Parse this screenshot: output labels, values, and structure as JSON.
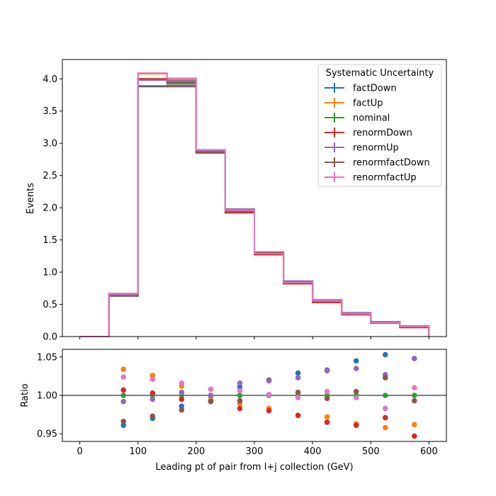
{
  "chart_data": [
    {
      "type": "step",
      "ylabel": "Events",
      "xlim": [
        -30,
        630
      ],
      "ylim": [
        0,
        4.3
      ],
      "yticks": [
        "0.0",
        "0.5",
        "1.0",
        "1.5",
        "2.0",
        "2.5",
        "3.0",
        "3.5",
        "4.0"
      ],
      "bin_edges": [
        0,
        50,
        100,
        150,
        200,
        250,
        300,
        350,
        400,
        450,
        500,
        550,
        600
      ],
      "legend": {
        "title": "Systematic Uncertainty",
        "placement": "upper-right"
      },
      "series": [
        {
          "name": "factDown",
          "color": "#1f77b4",
          "values": [
            0,
            0.63,
            3.88,
            3.9,
            2.86,
            1.96,
            1.31,
            0.86,
            0.56,
            0.37,
            0.23,
            0.16
          ]
        },
        {
          "name": "factUp",
          "color": "#ff7f0e",
          "values": [
            0,
            0.67,
            4.08,
            3.99,
            2.88,
            1.93,
            1.27,
            0.82,
            0.53,
            0.34,
            0.21,
            0.15
          ]
        },
        {
          "name": "nominal",
          "color": "#2ca02c",
          "values": [
            0,
            0.65,
            3.99,
            3.95,
            2.88,
            1.95,
            1.29,
            0.84,
            0.55,
            0.35,
            0.22,
            0.155
          ]
        },
        {
          "name": "renormDown",
          "color": "#d62728",
          "values": [
            0,
            0.655,
            4.0,
            3.93,
            2.85,
            1.92,
            1.27,
            0.82,
            0.53,
            0.34,
            0.21,
            0.14
          ]
        },
        {
          "name": "renormUp",
          "color": "#9467bd",
          "values": [
            0,
            0.645,
            3.98,
            3.97,
            2.88,
            1.98,
            1.31,
            0.86,
            0.57,
            0.37,
            0.225,
            0.165
          ]
        },
        {
          "name": "renormfactDown",
          "color": "#8c564b",
          "values": [
            0,
            0.63,
            3.89,
            3.88,
            2.86,
            1.94,
            1.3,
            0.845,
            0.55,
            0.355,
            0.225,
            0.155
          ]
        },
        {
          "name": "renormfactUp",
          "color": "#e377c2",
          "values": [
            0,
            0.665,
            4.09,
            4.01,
            2.9,
            1.96,
            1.29,
            0.84,
            0.555,
            0.355,
            0.218,
            0.158
          ]
        }
      ]
    },
    {
      "type": "scatter",
      "xlabel": "Leading pt of pair from l+j collection (GeV)",
      "ylabel": "Ratio",
      "xlim": [
        -30,
        630
      ],
      "ylim": [
        0.94,
        1.06
      ],
      "xticks": [
        "0",
        "100",
        "200",
        "300",
        "400",
        "500",
        "600"
      ],
      "yticks": [
        "0.95",
        "1.00",
        "1.05"
      ],
      "reference_line": 1.0,
      "x": [
        75,
        125,
        175,
        225,
        275,
        325,
        375,
        425,
        475,
        525,
        575
      ],
      "series": [
        {
          "name": "factDown",
          "color": "#1f77b4",
          "values": [
            0.961,
            0.97,
            0.986,
            0.993,
            1.011,
            1.02,
            1.029,
            1.033,
            1.045,
            1.053,
            1.048
          ]
        },
        {
          "name": "factUp",
          "color": "#ff7f0e",
          "values": [
            1.034,
            1.026,
            1.012,
            0.998,
            0.989,
            0.983,
            0.974,
            0.972,
            0.963,
            0.958,
            0.962
          ]
        },
        {
          "name": "nominal",
          "color": "#2ca02c",
          "values": [
            1.0,
            1.0,
            1.0,
            1.0,
            1.0,
            1.0,
            1.0,
            1.0,
            1.0,
            1.0,
            1.0
          ]
        },
        {
          "name": "renormDown",
          "color": "#d62728",
          "values": [
            1.007,
            1.003,
            0.995,
            0.992,
            0.983,
            0.98,
            0.974,
            0.965,
            0.961,
            0.971,
            0.947
          ]
        },
        {
          "name": "renormUp",
          "color": "#9467bd",
          "values": [
            0.992,
            0.995,
            1.004,
            1.0,
            1.016,
            1.019,
            1.023,
            1.032,
            1.035,
            1.027,
            1.048
          ]
        },
        {
          "name": "renormfactDown",
          "color": "#8c564b",
          "values": [
            0.966,
            0.973,
            0.981,
            0.992,
            0.993,
            1.001,
            1.004,
            0.996,
            1.005,
            1.023,
            0.993
          ]
        },
        {
          "name": "renormfactUp",
          "color": "#e377c2",
          "values": [
            1.024,
            1.021,
            1.016,
            1.008,
            1.006,
            1.001,
            0.997,
            1.005,
            0.997,
            0.983,
            1.01
          ]
        }
      ]
    }
  ]
}
